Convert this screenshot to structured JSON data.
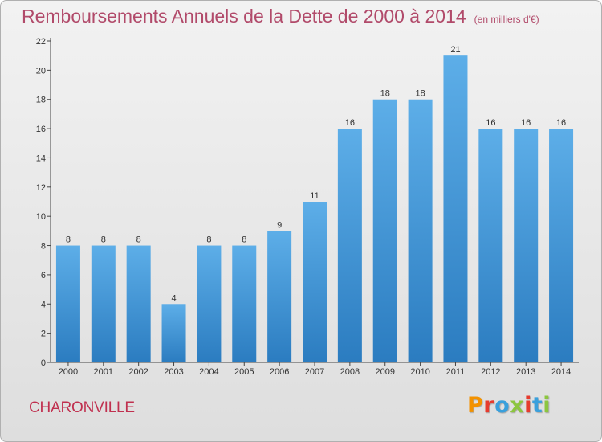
{
  "title": {
    "main": "Remboursements Annuels de la Dette de 2000 à 2014",
    "unit": "(en milliers d'€)"
  },
  "footer": {
    "city": "CHARONVILLE",
    "logo": "Proxiti",
    "logo_colors": [
      "#f39200",
      "#e63b2e",
      "#3aa0dc",
      "#8cc63f",
      "#e63b2e",
      "#3aa0dc",
      "#8cc63f"
    ]
  },
  "colors": {
    "bar_light": "#5daee8",
    "bar_dark": "#2b7cc0",
    "title": "#b14a6a",
    "city": "#c0304f"
  },
  "chart_data": {
    "type": "bar",
    "title": "Remboursements Annuels de la Dette de 2000 à 2014",
    "categories": [
      "2000",
      "2001",
      "2002",
      "2003",
      "2004",
      "2005",
      "2006",
      "2007",
      "2008",
      "2009",
      "2010",
      "2011",
      "2012",
      "2013",
      "2014"
    ],
    "values": [
      8,
      8,
      8,
      4,
      8,
      8,
      9,
      11,
      16,
      18,
      18,
      21,
      16,
      16,
      16
    ],
    "ylim": [
      0,
      22
    ],
    "yticks": [
      0,
      2,
      4,
      6,
      8,
      10,
      12,
      14,
      16,
      18,
      20,
      22
    ],
    "grid": false,
    "data_labels": true
  }
}
